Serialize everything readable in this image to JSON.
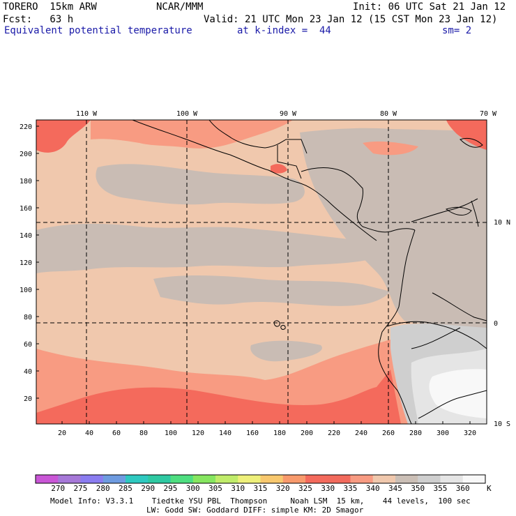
{
  "header": {
    "model": "TORERO  15km ARW",
    "org": "NCAR/MMM",
    "init": "Init: 06 UTC Sat 21 Jan 12",
    "fcst": "Fcst:   63 h",
    "valid": "Valid: 21 UTC Mon 23 Jan 12 (15 CST Mon 23 Jan 12)",
    "field": "Equivalent potential temperature",
    "level": "at k-index =  44",
    "smooth": "sm= 2"
  },
  "map": {
    "top_lon_labels": [
      "110 W",
      "100 W",
      "90 W",
      "80 W",
      "70 W"
    ],
    "right_lat_labels": [
      "10 N",
      "0",
      "10 S"
    ],
    "left_y_ticks": [
      "220",
      "200",
      "180",
      "160",
      "140",
      "120",
      "100",
      "80",
      "60",
      "40",
      "20"
    ],
    "bottom_x_ticks": [
      "20",
      "40",
      "60",
      "80",
      "100",
      "120",
      "140",
      "160",
      "180",
      "200",
      "220",
      "240",
      "260",
      "280",
      "300",
      "320"
    ],
    "colors": {
      "c325": "#ee9373",
      "c330": "#f46a5c",
      "c335": "#f89b82",
      "c340": "#f0c8ad",
      "c345": "#c9bcb4",
      "c350": "#cfcfcf",
      "c355": "#e5e5e5",
      "c360": "#f8f8f8"
    }
  },
  "colorbar": {
    "labels": [
      "270",
      "275",
      "280",
      "285",
      "290",
      "295",
      "300",
      "305",
      "310",
      "315",
      "320",
      "325",
      "330",
      "335",
      "340",
      "345",
      "350",
      "355",
      "360"
    ],
    "unit": "K",
    "colors": [
      "#c956d6",
      "#a678d8",
      "#8a7cf0",
      "#6e9be0",
      "#2ec9c0",
      "#2ec9a2",
      "#4ede80",
      "#86e660",
      "#c0ec6a",
      "#eef07a",
      "#f8c86e",
      "#f89a6c",
      "#f46a5c",
      "#f26a5c",
      "#f89b82",
      "#f0c8ad",
      "#cbbfb6",
      "#cfcfcf",
      "#e5e5e5",
      "#f8f8f8"
    ]
  },
  "footer": {
    "line1": "Model Info: V3.3.1    Tiedtke YSU PBL  Thompson     Noah LSM  15 km,    44 levels,  100 sec",
    "line2": "LW: Godd SW: Goddard DIFF: simple KM: 2D Smagor"
  }
}
